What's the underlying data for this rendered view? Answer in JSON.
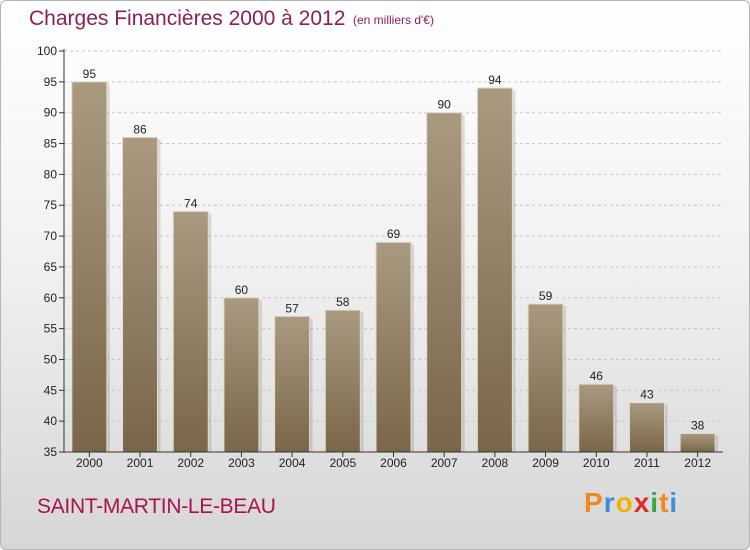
{
  "header": {
    "title": "Charges Financières 2000 à 2012",
    "subtitle": "(en milliers d'€)"
  },
  "footer": {
    "commune": "SAINT-MARTIN-LE-BEAU",
    "logo_letters": [
      {
        "char": "P",
        "color": "#f08a1c"
      },
      {
        "char": "r",
        "color": "#3b8fd6"
      },
      {
        "char": "o",
        "color": "#f0b400"
      },
      {
        "char": "x",
        "color": "#e02a2a"
      },
      {
        "char": "i",
        "color": "#3aa64a"
      },
      {
        "char": "t",
        "color": "#f08a1c"
      },
      {
        "char": "i",
        "color": "#3b8fd6"
      }
    ]
  },
  "colors": {
    "bar_top": "#a99a80",
    "bar_bottom": "#7a6648",
    "axis": "#333333",
    "grid": "#c8c8c8"
  },
  "chart_data": {
    "type": "bar",
    "title": "Charges Financières 2000 à 2012",
    "subtitle": "(en milliers d'€)",
    "xlabel": "",
    "ylabel": "",
    "categories": [
      "2000",
      "2001",
      "2002",
      "2003",
      "2004",
      "2005",
      "2006",
      "2007",
      "2008",
      "2009",
      "2010",
      "2011",
      "2012"
    ],
    "values": [
      95,
      86,
      74,
      60,
      57,
      58,
      69,
      90,
      94,
      59,
      46,
      43,
      38
    ],
    "ylim": [
      35,
      100
    ],
    "yticks": [
      35,
      40,
      45,
      50,
      55,
      60,
      65,
      70,
      75,
      80,
      85,
      90,
      95,
      100
    ],
    "grid": true,
    "data_labels": true
  }
}
